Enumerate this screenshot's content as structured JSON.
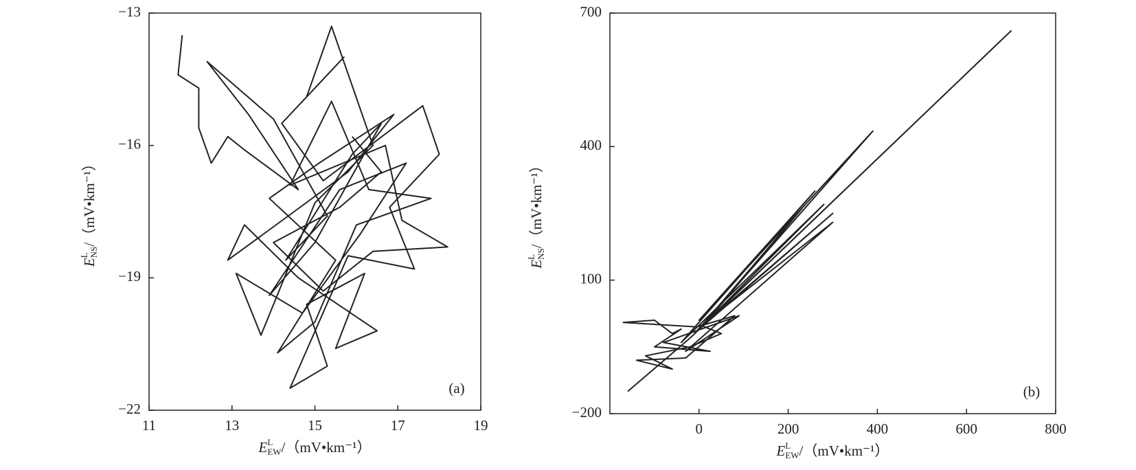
{
  "chart_data": [
    {
      "type": "line",
      "panel_label": "(a)",
      "color": "#222222",
      "xlabel": {
        "main": "E",
        "sup": "L",
        "sub": "EW",
        "unit": "/（mV•km⁻¹）"
      },
      "ylabel": {
        "main": "E",
        "sup": "L",
        "sub": "NS",
        "unit": "/（mV•km⁻¹）"
      },
      "xlim": [
        11,
        19
      ],
      "xticks": [
        11,
        13,
        15,
        17,
        19
      ],
      "ylim": [
        -22,
        -13
      ],
      "yticks": [
        {
          "value": -13,
          "label": "−13"
        },
        {
          "value": -16,
          "label": "−16"
        },
        {
          "value": -19,
          "label": "−19"
        },
        {
          "value": -22,
          "label": "−22"
        }
      ],
      "x": [
        11.8,
        11.7,
        12.2,
        12.2,
        12.5,
        12.9,
        13.3,
        14.6,
        13.4,
        12.4,
        14.0,
        15.3,
        14.3,
        15.9,
        16.6,
        15.0,
        13.9,
        15.6,
        17.2,
        16.1,
        14.7,
        13.1,
        13.7,
        15.0,
        16.4,
        15.4,
        14.8,
        15.7,
        14.2,
        15.2,
        17.6,
        18.0,
        16.8,
        17.4,
        15.8,
        14.4,
        15.3,
        14.8,
        16.2,
        15.5,
        16.5,
        14.6,
        13.3,
        12.9,
        14.5,
        15.8,
        16.9,
        15.1,
        13.9,
        15.5,
        14.1,
        15.0,
        16.0,
        17.8,
        16.3,
        15.4,
        14.4,
        16.7,
        17.1,
        18.2,
        16.4,
        15.2,
        14.0,
        15.6,
        16.6,
        15.9
      ],
      "values": [
        -13.5,
        -14.4,
        -14.7,
        -15.6,
        -16.4,
        -15.8,
        -16.1,
        -17.0,
        -15.3,
        -14.1,
        -15.4,
        -17.6,
        -18.6,
        -16.2,
        -15.5,
        -18.2,
        -19.4,
        -17.0,
        -16.4,
        -18.0,
        -19.8,
        -18.9,
        -20.3,
        -17.3,
        -16.0,
        -13.3,
        -14.9,
        -14.0,
        -15.5,
        -16.8,
        -15.1,
        -16.2,
        -17.4,
        -18.8,
        -18.5,
        -21.5,
        -21.0,
        -19.6,
        -18.9,
        -20.6,
        -20.2,
        -19.0,
        -17.8,
        -18.6,
        -17.5,
        -16.6,
        -15.3,
        -16.4,
        -17.2,
        -18.6,
        -20.7,
        -20.0,
        -17.8,
        -17.2,
        -17.0,
        -15.0,
        -16.9,
        -16.0,
        -17.7,
        -18.3,
        -18.4,
        -19.3,
        -18.2,
        -17.4,
        -16.6,
        -15.8
      ]
    },
    {
      "type": "line",
      "panel_label": "(b)",
      "color": "#222222",
      "xlabel": {
        "main": "E",
        "sup": "L",
        "sub": "EW",
        "unit": "/（mV•km⁻¹）"
      },
      "ylabel": {
        "main": "E",
        "sup": "L",
        "sub": "NS",
        "unit": "/（mV•km⁻¹）"
      },
      "xlim": [
        -200,
        800
      ],
      "xticks": [
        0,
        200,
        400,
        600,
        800
      ],
      "ylim": [
        -200,
        700
      ],
      "yticks": [
        {
          "value": -200,
          "label": "−200"
        },
        100,
        400,
        700
      ],
      "x": [
        -160,
        -20,
        700,
        -10,
        390,
        0,
        260,
        -40,
        280,
        10,
        300,
        -5,
        230,
        20,
        300,
        -30,
        90,
        -80,
        25,
        -100,
        -40,
        -60,
        -100,
        -170,
        -5,
        80,
        -30,
        -140,
        -60,
        -120,
        -20,
        50,
        0
      ],
      "values": [
        -150,
        -30,
        660,
        -20,
        435,
        10,
        300,
        -40,
        270,
        0,
        250,
        -15,
        260,
        10,
        230,
        -60,
        20,
        -40,
        -60,
        -50,
        -10,
        -20,
        10,
        5,
        -5,
        20,
        -75,
        -80,
        -100,
        -70,
        -50,
        -20,
        0
      ]
    }
  ]
}
